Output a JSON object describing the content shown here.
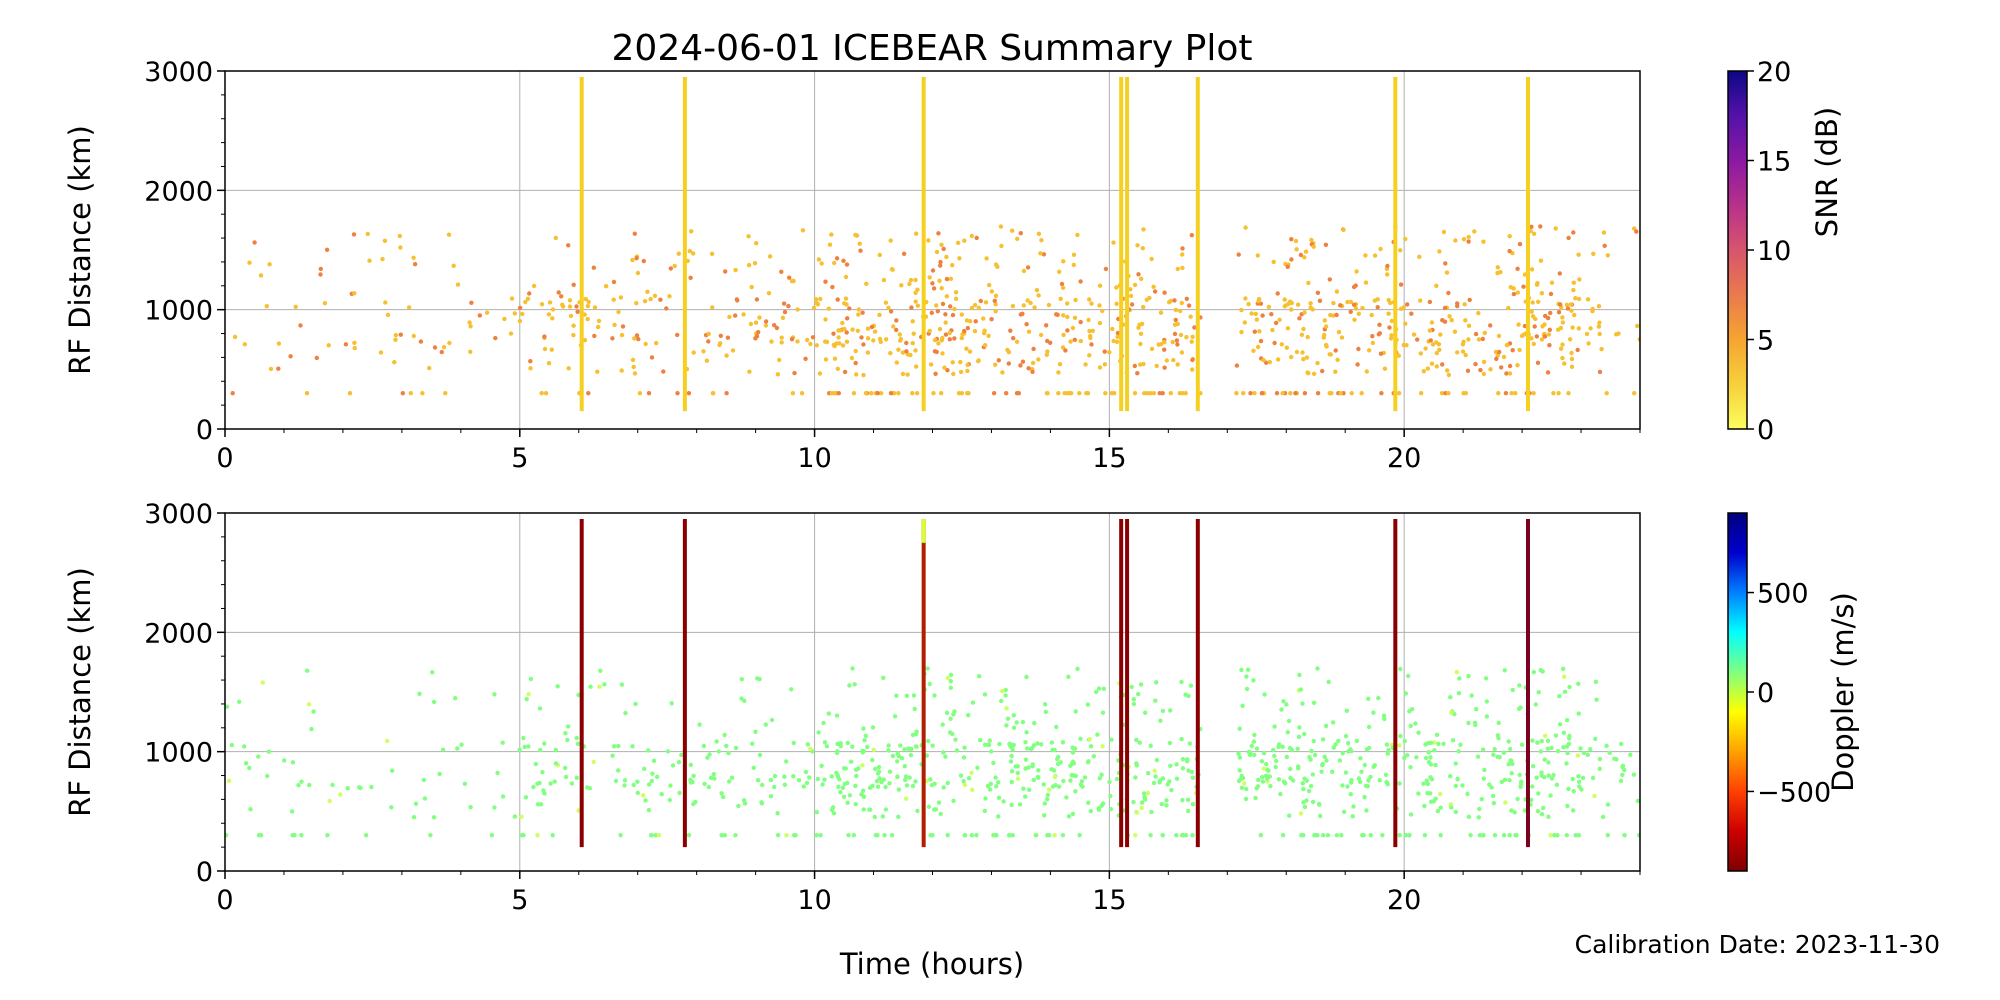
{
  "title": "2024-06-01 ICEBEAR Summary Plot",
  "xlabel": "Time (hours)",
  "footer": "Calibration Date: 2023-11-30",
  "chart_data": [
    {
      "type": "scatter",
      "ylabel": "RF Distance (km)",
      "xlim": [
        0,
        24
      ],
      "ylim": [
        0,
        3000
      ],
      "xticks": [
        0,
        5,
        10,
        15,
        20
      ],
      "yticks": [
        0,
        1000,
        2000,
        3000
      ],
      "grid": true,
      "colorbar": {
        "label": "SNR (dB)",
        "range": [
          0,
          20
        ],
        "ticks": [
          0,
          5,
          10,
          15,
          20
        ],
        "colormap": [
          "#fcfd5e",
          "#f7d03c",
          "#f6a431",
          "#ea7a4d",
          "#d6556d",
          "#b7318a",
          "#8b19a2",
          "#5412a8",
          "#0c0786"
        ]
      },
      "typical_value_color": "#f6c030",
      "vertical_streaks_hours": [
        6.05,
        7.8,
        11.85,
        15.2,
        15.3,
        16.5,
        19.85,
        22.1
      ]
    },
    {
      "type": "scatter",
      "ylabel": "RF Distance (km)",
      "xlim": [
        0,
        24
      ],
      "ylim": [
        0,
        3000
      ],
      "xticks": [
        0,
        5,
        10,
        15,
        20
      ],
      "yticks": [
        0,
        1000,
        2000,
        3000
      ],
      "grid": true,
      "colorbar": {
        "label": "Doppler (m/s)",
        "range": [
          -900,
          900
        ],
        "ticks": [
          -500,
          0,
          500
        ],
        "colormap": [
          "#7f0000",
          "#cc0000",
          "#ff4000",
          "#ffa000",
          "#ffff00",
          "#80ff80",
          "#00ffff",
          "#0080ff",
          "#0000cc",
          "#00007f"
        ]
      },
      "typical_value_color": "#80ff80",
      "vertical_streaks_hours": [
        6.05,
        7.8,
        11.85,
        15.2,
        15.3,
        16.5,
        19.85,
        22.1
      ]
    }
  ]
}
